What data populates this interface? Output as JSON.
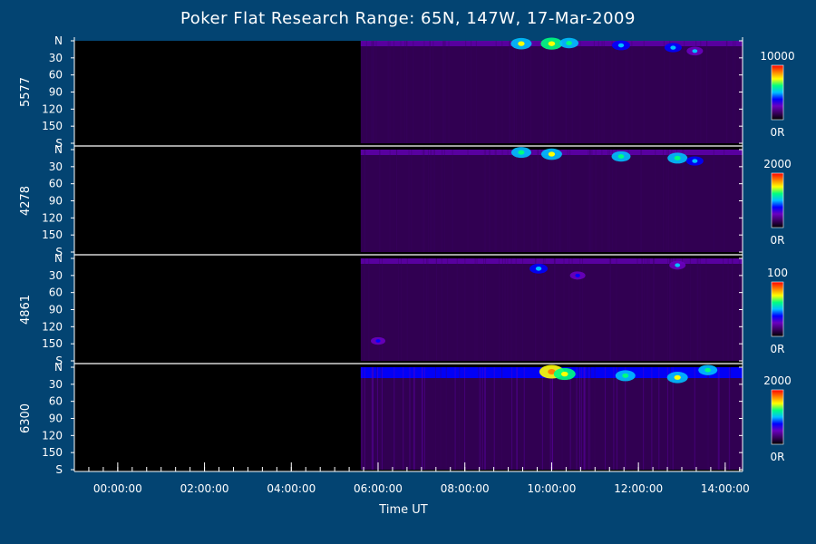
{
  "title": "Poker Flat Research Range: 65N, 147W, 17-Mar-2009",
  "chart_data": {
    "type": "heatmap",
    "title": "Poker Flat Research Range: 65N, 147W, 17-Mar-2009",
    "xlabel": "Time UT",
    "x_ticks": [
      "00:00:00",
      "02:00:00",
      "04:00:00",
      "06:00:00",
      "08:00:00",
      "10:00:00",
      "12:00:00",
      "14:00:00"
    ],
    "x_range_hours": [
      -1.0,
      14.4
    ],
    "y_ticks": [
      "N",
      "30",
      "60",
      "90",
      "120",
      "150",
      "S"
    ],
    "y_range": [
      0,
      180
    ],
    "data_start_hours": 5.6,
    "panels": [
      {
        "wavelength": "5577",
        "colorbar_max": "10000",
        "colorbar_min": "0R",
        "features": [
          {
            "time": 9.3,
            "angle": 5,
            "intensity": 0.55
          },
          {
            "time": 10.0,
            "angle": 5,
            "intensity": 0.6
          },
          {
            "time": 10.4,
            "angle": 4,
            "intensity": 0.45
          },
          {
            "time": 11.6,
            "angle": 8,
            "intensity": 0.4
          },
          {
            "time": 12.8,
            "angle": 12,
            "intensity": 0.35
          },
          {
            "time": 13.3,
            "angle": 18,
            "intensity": 0.3
          }
        ]
      },
      {
        "wavelength": "4278",
        "colorbar_max": "2000",
        "colorbar_min": "0R",
        "features": [
          {
            "time": 9.3,
            "angle": 5,
            "intensity": 0.5
          },
          {
            "time": 10.0,
            "angle": 8,
            "intensity": 0.55
          },
          {
            "time": 11.6,
            "angle": 12,
            "intensity": 0.45
          },
          {
            "time": 12.9,
            "angle": 15,
            "intensity": 0.5
          },
          {
            "time": 13.3,
            "angle": 20,
            "intensity": 0.35
          }
        ]
      },
      {
        "wavelength": "4861",
        "colorbar_max": "100",
        "colorbar_min": "0R",
        "features": [
          {
            "time": 9.7,
            "angle": 18,
            "intensity": 0.4
          },
          {
            "time": 10.6,
            "angle": 30,
            "intensity": 0.25
          },
          {
            "time": 12.9,
            "angle": 12,
            "intensity": 0.3
          },
          {
            "time": 6.0,
            "angle": 145,
            "intensity": 0.2
          }
        ]
      },
      {
        "wavelength": "6300",
        "colorbar_max": "2000",
        "colorbar_min": "0R",
        "features": [
          {
            "time": 10.0,
            "angle": 8,
            "intensity": 0.75
          },
          {
            "time": 10.3,
            "angle": 12,
            "intensity": 0.6
          },
          {
            "time": 11.7,
            "angle": 15,
            "intensity": 0.5
          },
          {
            "time": 12.9,
            "angle": 18,
            "intensity": 0.55
          },
          {
            "time": 13.6,
            "angle": 5,
            "intensity": 0.45
          }
        ]
      }
    ],
    "colorscale": [
      "#000000",
      "#3a0060",
      "#6a00c0",
      "#0000ff",
      "#00c0ff",
      "#00ff80",
      "#ffff00",
      "#ff8000",
      "#ff0000"
    ]
  }
}
